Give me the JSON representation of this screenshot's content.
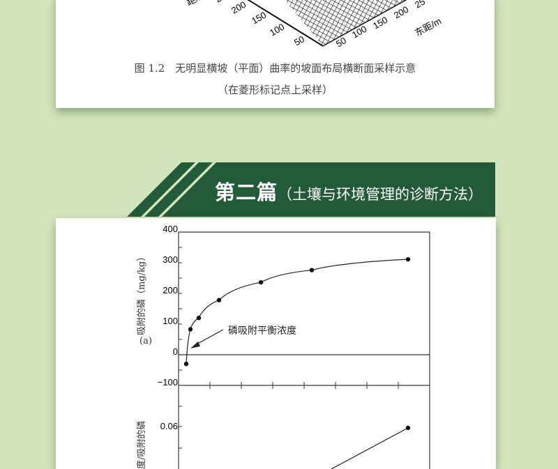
{
  "top_figure": {
    "left_axis_label": "距/m",
    "left_ticks": [
      "250",
      "200",
      "150",
      "100",
      "50"
    ],
    "right_ticks": [
      "50",
      "100",
      "150",
      "200",
      "25"
    ],
    "right_axis_label": "东距/m",
    "caption_line1": "图 1.2　无明显横坡（平面）曲率的坡面布局横断面采样示意",
    "caption_line2": "（在菱形标记点上采样）"
  },
  "banner": {
    "title": "第二篇",
    "subtitle": "（土壤与环境管理的诊断方法）",
    "color": "#235a3a"
  },
  "chart_a": {
    "panel_label": "(a)",
    "ylabel": "吸附的磷（mg/kg）",
    "yticks": [
      "400",
      "300",
      "200",
      "100",
      "0",
      "−100"
    ],
    "ylim": [
      -100,
      400
    ],
    "y_values": [
      -30,
      83,
      120,
      178,
      236,
      276,
      311
    ],
    "annotation": "磷吸附平衡浓度"
  },
  "chart_b": {
    "ylabel": "度/吸附的磷",
    "yticks": [
      "0.06"
    ]
  }
}
